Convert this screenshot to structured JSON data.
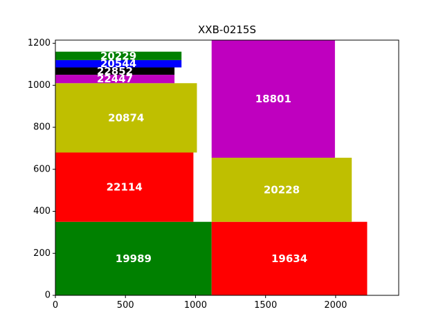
{
  "chart_data": {
    "type": "bar",
    "title": "XXB-0215S",
    "xlabel": "",
    "ylabel": "",
    "xlim": [
      0,
      2450
    ],
    "ylim": [
      0,
      1215
    ],
    "grid": false,
    "x_ticks": [
      0,
      500,
      1000,
      1500,
      2000
    ],
    "y_ticks": [
      0,
      200,
      400,
      600,
      800,
      1000,
      1200
    ],
    "rects": [
      {
        "label": "19989",
        "color": "#008000",
        "x0": 0,
        "x1": 1115,
        "y0": 0,
        "y1": 350
      },
      {
        "label": "19634",
        "color": "#ff0000",
        "x0": 1115,
        "x1": 2225,
        "y0": 0,
        "y1": 350
      },
      {
        "label": "22114",
        "color": "#ff0000",
        "x0": 0,
        "x1": 985,
        "y0": 350,
        "y1": 680
      },
      {
        "label": "20228",
        "color": "#bfbf00",
        "x0": 1115,
        "x1": 2115,
        "y0": 350,
        "y1": 655
      },
      {
        "label": "20874",
        "color": "#bfbf00",
        "x0": 0,
        "x1": 1010,
        "y0": 680,
        "y1": 1010
      },
      {
        "label": "18801",
        "color": "#bf00bf",
        "x0": 1115,
        "x1": 1995,
        "y0": 655,
        "y1": 1215
      },
      {
        "label": "22447",
        "color": "#bf00bf",
        "x0": 0,
        "x1": 850,
        "y0": 1010,
        "y1": 1050
      },
      {
        "label": "22852",
        "color": "#000000",
        "x0": 0,
        "x1": 850,
        "y0": 1050,
        "y1": 1085
      },
      {
        "label": "20544",
        "color": "#0000ff",
        "x0": 0,
        "x1": 900,
        "y0": 1085,
        "y1": 1120
      },
      {
        "label": "20229",
        "color": "#008000",
        "x0": 0,
        "x1": 900,
        "y0": 1120,
        "y1": 1160
      }
    ]
  }
}
